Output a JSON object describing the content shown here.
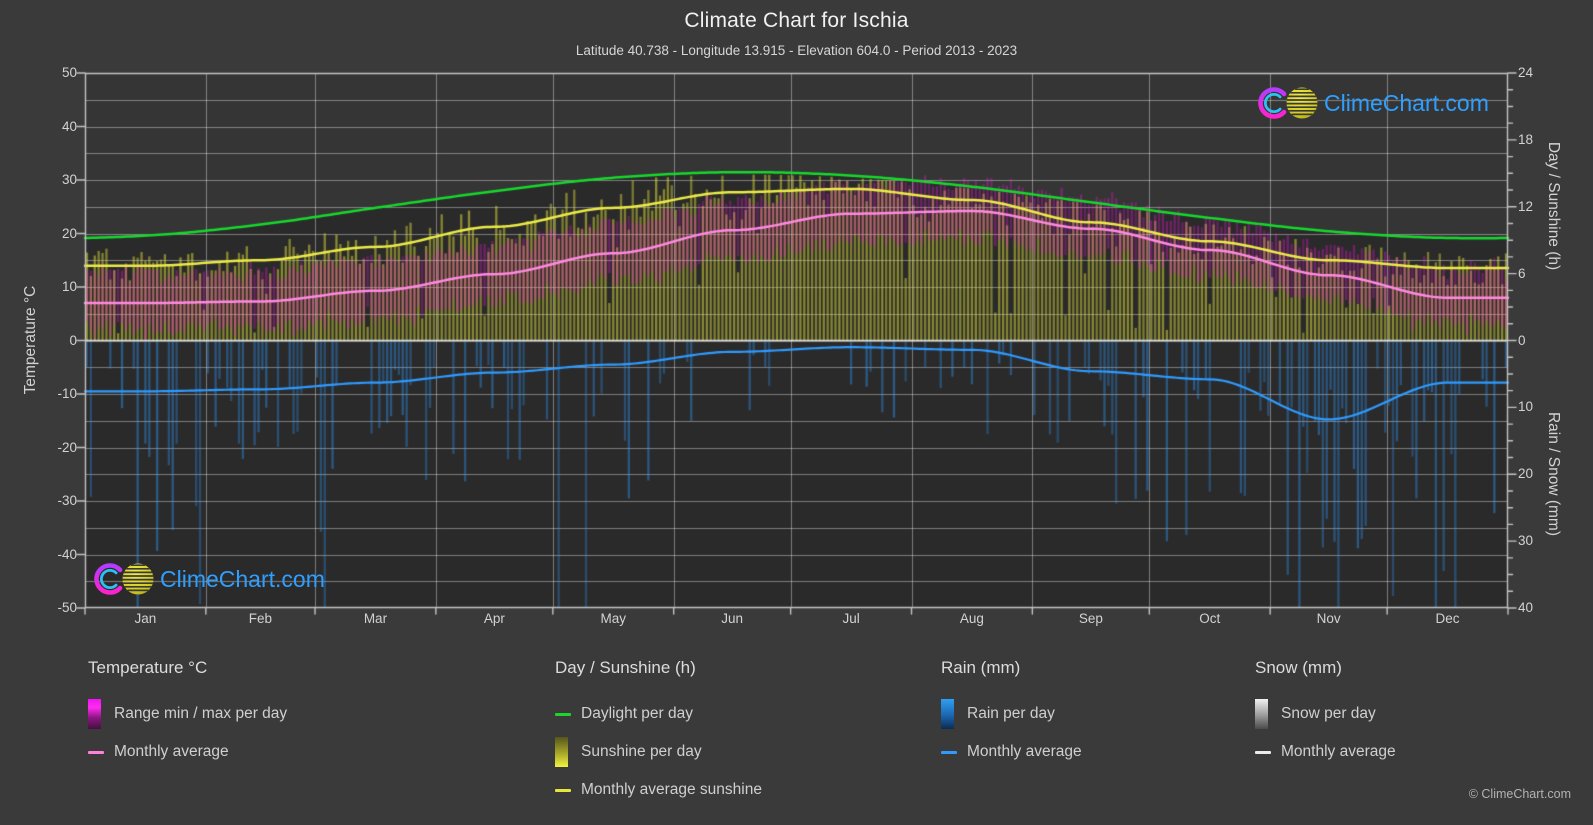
{
  "title": "Climate Chart for Ischia",
  "subtitle": "Latitude 40.738 - Longitude 13.915 - Elevation 604.0 - Period 2013 - 2023",
  "watermark": "ClimeChart.com",
  "copyright": "© ClimeChart.com",
  "axes": {
    "left_label": "Temperature °C",
    "right_top_label": "Day / Sunshine (h)",
    "right_bottom_label": "Rain / Snow (mm)",
    "left_ticks": [
      50,
      40,
      30,
      20,
      10,
      0,
      -10,
      -20,
      -30,
      -40,
      -50
    ],
    "right_top_ticks": [
      24,
      18,
      12,
      6,
      0
    ],
    "right_bottom_ticks": [
      10,
      20,
      30,
      40
    ],
    "months": [
      "Jan",
      "Feb",
      "Mar",
      "Apr",
      "May",
      "Jun",
      "Jul",
      "Aug",
      "Sep",
      "Oct",
      "Nov",
      "Dec"
    ]
  },
  "legend": {
    "groups": [
      {
        "heading": "Temperature °C",
        "items": [
          {
            "key": "temp-range",
            "swatch": "gradient",
            "color": "#ff1ee0",
            "label": "Range min / max per day"
          },
          {
            "key": "temp-avg",
            "swatch": "line",
            "color": "#ff80dd",
            "label": "Monthly average"
          }
        ]
      },
      {
        "heading": "Day / Sunshine (h)",
        "items": [
          {
            "key": "daylight",
            "swatch": "line",
            "color": "#1ed42e",
            "label": "Daylight per day"
          },
          {
            "key": "sunshine",
            "swatch": "gradient",
            "color": "#c8c838",
            "label": "Sunshine per day"
          },
          {
            "key": "sunshine-avg",
            "swatch": "line",
            "color": "#e6e63c",
            "label": "Monthly average sunshine"
          }
        ]
      },
      {
        "heading": "Rain (mm)",
        "items": [
          {
            "key": "rain",
            "swatch": "gradient",
            "color": "#2d8ce6",
            "label": "Rain per day"
          },
          {
            "key": "rain-avg",
            "swatch": "line",
            "color": "#2f9bff",
            "label": "Monthly average"
          }
        ]
      },
      {
        "heading": "Snow (mm)",
        "items": [
          {
            "key": "snow",
            "swatch": "gradient",
            "color": "#d8d8d8",
            "label": "Snow per day"
          },
          {
            "key": "snow-avg",
            "swatch": "line",
            "color": "#ebebeb",
            "label": "Monthly average"
          }
        ]
      }
    ]
  },
  "chart_data": {
    "type": "area",
    "description": "Composite climate chart: daily bars (temperature range, sunshine, rain) with monthly average lines",
    "months": [
      "Jan",
      "Feb",
      "Mar",
      "Apr",
      "May",
      "Jun",
      "Jul",
      "Aug",
      "Sep",
      "Oct",
      "Nov",
      "Dec"
    ],
    "series": [
      {
        "name": "Daylight per day (h)",
        "type": "line",
        "color": "#16d92c",
        "values": [
          9.4,
          10.4,
          11.9,
          13.4,
          14.6,
          15.1,
          14.8,
          13.8,
          12.4,
          11.0,
          9.8,
          9.2
        ]
      },
      {
        "name": "Monthly average sunshine (h)",
        "type": "line",
        "color": "#ecec48",
        "values": [
          6.7,
          7.2,
          8.4,
          10.2,
          11.9,
          13.3,
          13.6,
          12.6,
          10.6,
          8.9,
          7.2,
          6.5
        ]
      },
      {
        "name": "Sunshine per day (h)",
        "type": "daily-bar",
        "color": "#c8c838",
        "monthly_mean": [
          6.7,
          7.2,
          8.4,
          10.2,
          11.9,
          13.3,
          13.6,
          12.6,
          10.6,
          8.9,
          7.2,
          6.5
        ]
      },
      {
        "name": "Temperature monthly average (°C)",
        "type": "line",
        "color": "#ff8ae2",
        "values": [
          7.0,
          7.3,
          9.3,
          12.4,
          16.3,
          20.6,
          23.7,
          24.2,
          20.9,
          16.9,
          12.2,
          8.0
        ]
      },
      {
        "name": "Temperature range min/max per day (°C)",
        "type": "daily-range-bar",
        "color": "#ff1ee0",
        "monthly_min": [
          2.9,
          3.1,
          4.9,
          7.8,
          11.6,
          15.9,
          18.9,
          19.4,
          16.3,
          12.6,
          8.2,
          4.0
        ],
        "monthly_max": [
          11.9,
          12.3,
          14.4,
          17.4,
          21.4,
          25.6,
          28.6,
          29.1,
          25.8,
          21.7,
          16.8,
          12.4
        ]
      },
      {
        "name": "Rain per day (mm)",
        "type": "daily-bar",
        "color": "#2d8ce6",
        "monthly_mean": [
          7.6,
          7.3,
          6.3,
          4.8,
          3.6,
          1.7,
          1.0,
          1.4,
          4.6,
          5.8,
          11.8,
          6.3
        ]
      },
      {
        "name": "Rain monthly average (mm)",
        "type": "line",
        "color": "#2f9bff",
        "values": [
          7.6,
          7.3,
          6.3,
          4.8,
          3.6,
          1.7,
          1.0,
          1.4,
          4.6,
          5.8,
          11.8,
          6.3
        ]
      },
      {
        "name": "Snow per day (mm)",
        "type": "daily-bar",
        "color": "#d8d8d8",
        "monthly_mean": [
          0,
          0,
          0,
          0,
          0,
          0,
          0,
          0,
          0,
          0,
          0,
          0
        ]
      },
      {
        "name": "Snow monthly average (mm)",
        "type": "line",
        "color": "#ebebeb",
        "values": [
          0,
          0,
          0,
          0,
          0,
          0,
          0,
          0,
          0,
          0,
          0,
          0
        ]
      }
    ],
    "axis_ranges": {
      "temperature_c": [
        -50,
        50
      ],
      "day_sunshine_h": [
        0,
        24
      ],
      "rain_snow_mm": [
        0,
        40
      ],
      "rain_axis_inverted": true
    },
    "grid": {
      "horizontal_step_c": 5,
      "vertical": "month-boundaries"
    },
    "legend_position": "bottom"
  },
  "colors": {
    "background": "#3a3a3a",
    "plot_background": "#353535",
    "daylight_shade": "#2c2c2c",
    "gridline": "#8a8a8a",
    "axis": "#c4c4c4",
    "daylight_line": "#16d92c",
    "sunshine_bar": "#c8c838",
    "sunshine_line": "#ecec48",
    "temp_range_bar": "#ff1ee0",
    "temp_line": "#ff8ae2",
    "rain_bar": "#2d8ce6",
    "rain_line": "#2f9bff",
    "snow_bar": "#d8d8d8",
    "snow_line": "#ebebeb",
    "logo_text": "#2f9fff"
  }
}
